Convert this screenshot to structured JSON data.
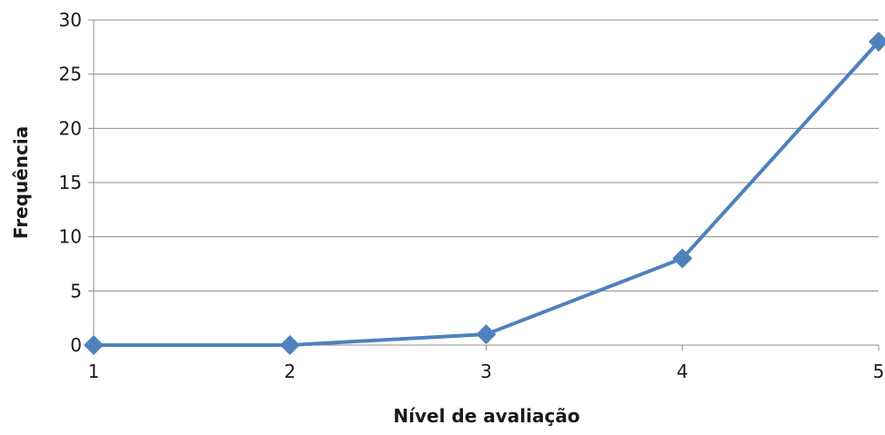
{
  "chart_data": {
    "type": "line",
    "title": "",
    "xlabel": "Nível de avaliação",
    "ylabel": "Frequência",
    "x": [
      1,
      2,
      3,
      4,
      5
    ],
    "x_tick_labels": [
      "1",
      "2",
      "3",
      "4",
      "5"
    ],
    "ylim": [
      0,
      30
    ],
    "y_ticks": [
      0,
      5,
      10,
      15,
      20,
      25,
      30
    ],
    "grid": "horizontal",
    "legend": "none",
    "marker": "diamond",
    "series": [
      {
        "values": [
          0,
          0,
          1,
          8,
          28
        ],
        "color": "#4f81bd"
      }
    ]
  }
}
